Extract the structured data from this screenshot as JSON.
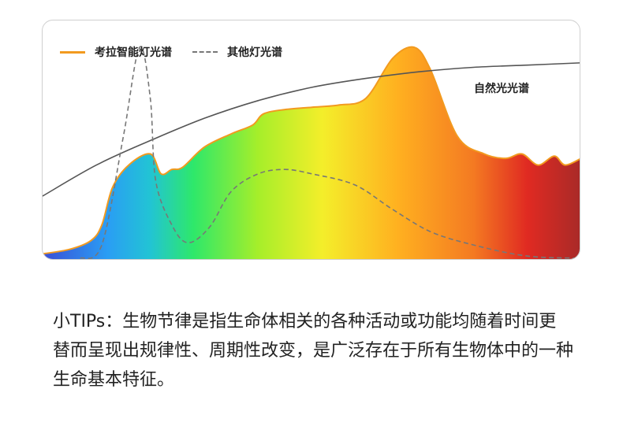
{
  "chart_data": {
    "type": "line",
    "series": [
      {
        "name": "考拉智能灯光谱",
        "style": "solid gradient-filled",
        "color": "#f29a1f",
        "points": [
          [
            0,
            0.02
          ],
          [
            0.05,
            0.04
          ],
          [
            0.09,
            0.08
          ],
          [
            0.11,
            0.15
          ],
          [
            0.13,
            0.32
          ],
          [
            0.16,
            0.42
          ],
          [
            0.2,
            0.47
          ],
          [
            0.22,
            0.38
          ],
          [
            0.24,
            0.4
          ],
          [
            0.26,
            0.41
          ],
          [
            0.3,
            0.5
          ],
          [
            0.35,
            0.56
          ],
          [
            0.39,
            0.6
          ],
          [
            0.41,
            0.65
          ],
          [
            0.45,
            0.67
          ],
          [
            0.5,
            0.68
          ],
          [
            0.55,
            0.69
          ],
          [
            0.6,
            0.72
          ],
          [
            0.65,
            0.9
          ],
          [
            0.69,
            0.95
          ],
          [
            0.72,
            0.85
          ],
          [
            0.77,
            0.55
          ],
          [
            0.82,
            0.47
          ],
          [
            0.86,
            0.45
          ],
          [
            0.89,
            0.47
          ],
          [
            0.92,
            0.42
          ],
          [
            0.95,
            0.46
          ],
          [
            0.97,
            0.42
          ],
          [
            1.0,
            0.45
          ]
        ]
      },
      {
        "name": "其他灯光谱",
        "style": "dashed",
        "color": "#777777",
        "points": [
          [
            0.07,
            0.0
          ],
          [
            0.11,
            0.06
          ],
          [
            0.15,
            0.55
          ],
          [
            0.18,
            0.95
          ],
          [
            0.2,
            0.72
          ],
          [
            0.21,
            0.35
          ],
          [
            0.24,
            0.15
          ],
          [
            0.27,
            0.07
          ],
          [
            0.31,
            0.14
          ],
          [
            0.35,
            0.3
          ],
          [
            0.4,
            0.38
          ],
          [
            0.45,
            0.4
          ],
          [
            0.5,
            0.38
          ],
          [
            0.58,
            0.33
          ],
          [
            0.65,
            0.22
          ],
          [
            0.72,
            0.12
          ],
          [
            0.8,
            0.06
          ],
          [
            0.9,
            0.01
          ],
          [
            1.0,
            0.0
          ]
        ]
      },
      {
        "name": "自然光光谱",
        "style": "solid",
        "color": "#555555",
        "points": [
          [
            0,
            0.28
          ],
          [
            0.1,
            0.42
          ],
          [
            0.2,
            0.53
          ],
          [
            0.3,
            0.63
          ],
          [
            0.4,
            0.71
          ],
          [
            0.5,
            0.77
          ],
          [
            0.6,
            0.81
          ],
          [
            0.7,
            0.84
          ],
          [
            0.8,
            0.86
          ],
          [
            0.9,
            0.87
          ],
          [
            1.0,
            0.88
          ]
        ]
      }
    ],
    "legend": [
      "考拉智能灯光谱",
      "其他灯光谱"
    ],
    "annotation": "自然光光谱",
    "grid": false
  },
  "tips_text": "小TIPs：生物节律是指生命体相关的各种活动或功能均随着时间更替而呈现出规律性、周期性改变，是广泛存在于所有生物体中的一种生命基本特征。"
}
